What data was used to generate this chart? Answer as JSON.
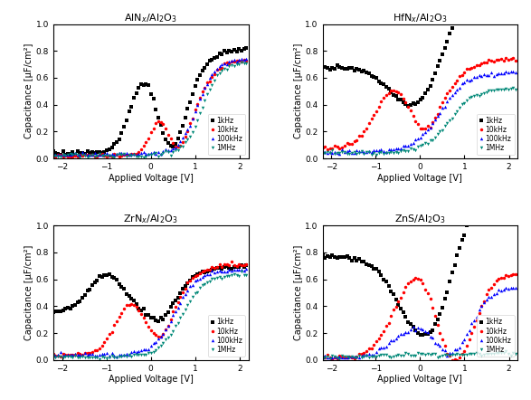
{
  "colors": [
    "black",
    "red",
    "blue",
    "#008877"
  ],
  "markers": [
    "s",
    "o",
    "^",
    "v"
  ],
  "markersize": 2.5,
  "freq_labels": [
    "1kHz",
    "10kHz",
    "100kHz",
    "1MHz"
  ],
  "xlabel": "Applied Voltage [V]",
  "ylabel": "Capacitance [μF/cm²]",
  "xlim": [
    -2.2,
    2.2
  ],
  "ylim": [
    0,
    1.0
  ],
  "yticks": [
    0.0,
    0.2,
    0.4,
    0.6,
    0.8,
    1.0
  ],
  "xticks": [
    -2,
    -1,
    0,
    1,
    2
  ],
  "titles": [
    "AlN$_x$/Al$_2$O$_3$",
    "HfN$_x$/Al$_2$O$_3$",
    "ZrN$_x$/Al$_2$O$_3$",
    "ZnS/Al$_2$O$_3$"
  ]
}
